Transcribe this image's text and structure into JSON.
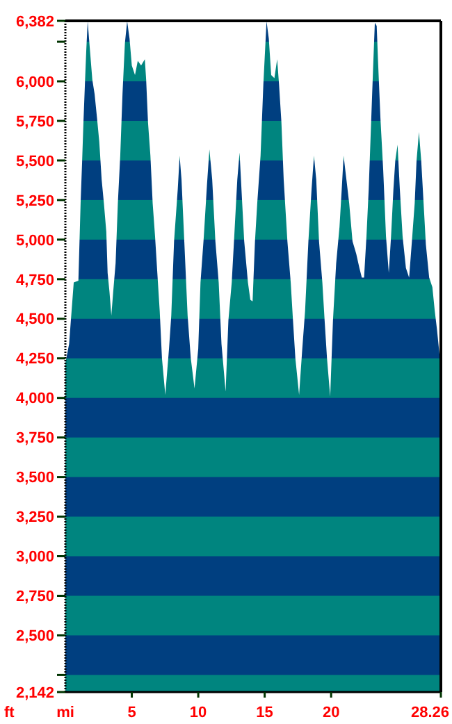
{
  "chart_data": {
    "type": "area",
    "xlabel": "mi",
    "ylabel": "ft",
    "xlim": [
      0,
      28.26
    ],
    "ylim": [
      2142,
      6382
    ],
    "xticks": [
      5,
      10,
      15,
      20,
      28.26
    ],
    "yticks": [
      {
        "value": 2142,
        "label": "2,142"
      },
      {
        "value": 2250,
        "label": null
      },
      {
        "value": 2500,
        "label": "2,500"
      },
      {
        "value": 2750,
        "label": "2,750"
      },
      {
        "value": 3000,
        "label": "3,000"
      },
      {
        "value": 3250,
        "label": "3,250"
      },
      {
        "value": 3500,
        "label": "3,500"
      },
      {
        "value": 3750,
        "label": "3,750"
      },
      {
        "value": 4000,
        "label": "4,000"
      },
      {
        "value": 4250,
        "label": "4,250"
      },
      {
        "value": 4500,
        "label": "4,500"
      },
      {
        "value": 4750,
        "label": "4,750"
      },
      {
        "value": 5000,
        "label": "5,000"
      },
      {
        "value": 5250,
        "label": "5,250"
      },
      {
        "value": 5500,
        "label": "5,500"
      },
      {
        "value": 5750,
        "label": "5,750"
      },
      {
        "value": 6000,
        "label": "6,000"
      },
      {
        "value": 6250,
        "label": null
      },
      {
        "value": 6382,
        "label": "6,382"
      }
    ],
    "grid": false,
    "x": [
      0,
      0.28,
      0.63,
      0.98,
      1.15,
      1.26,
      1.36,
      1.47,
      1.57,
      1.68,
      1.78,
      2.03,
      2.2,
      2.38,
      2.55,
      2.73,
      2.9,
      3.08,
      3.18,
      3.32,
      3.46,
      3.6,
      3.78,
      3.95,
      4.13,
      4.3,
      4.48,
      4.65,
      4.83,
      5,
      5.24,
      5.45,
      5.7,
      5.98,
      6.08,
      6.22,
      6.4,
      6.57,
      6.75,
      6.92,
      7.1,
      7.27,
      7.52,
      7.8,
      7.97,
      8.18,
      8.46,
      8.6,
      8.74,
      8.95,
      9.2,
      9.44,
      9.72,
      10,
      10.17,
      10.42,
      10.66,
      10.84,
      11.05,
      11.29,
      11.54,
      11.75,
      12.06,
      12.27,
      12.52,
      12.69,
      12.94,
      13.11,
      13.29,
      13.46,
      13.74,
      13.92,
      14.09,
      14.27,
      14.44,
      14.69,
      14.9,
      15.14,
      15.31,
      15.49,
      15.73,
      15.94,
      16.08,
      16.26,
      16.43,
      16.71,
      16.96,
      17.13,
      17.31,
      17.59,
      17.83,
      18.04,
      18.29,
      18.53,
      18.71,
      18.88,
      19.09,
      19.34,
      19.51,
      19.69,
      19.93,
      20.14,
      20.38,
      20.63,
      20.8,
      20.94,
      21.15,
      21.36,
      21.61,
      21.89,
      22.13,
      22.31,
      22.48,
      22.66,
      22.83,
      23.01,
      23.18,
      23.29,
      23.43,
      23.53,
      23.71,
      23.92,
      24.13,
      24.34,
      24.51,
      24.69,
      24.83,
      25,
      25.17,
      25.38,
      25.63,
      25.87,
      26.08,
      26.29,
      26.43,
      26.61,
      26.78,
      26.96,
      27.13,
      27.38,
      27.62,
      27.8,
      27.97,
      28.15,
      28.26
    ],
    "series": [
      {
        "color": "#00857f",
        "values": [
          4220,
          4340,
          4730,
          4740,
          5240,
          5490,
          5740,
          5980,
          6190,
          6380,
          6270,
          6010,
          5920,
          5770,
          5620,
          5380,
          5230,
          5050,
          4790,
          4670,
          4520,
          4670,
          4850,
          5230,
          5530,
          5920,
          6240,
          6380,
          6270,
          6100,
          6040,
          6130,
          6100,
          6140,
          6010,
          5740,
          5530,
          5230,
          5020,
          4790,
          4550,
          4250,
          4020,
          4310,
          4520,
          4990,
          5320,
          5530,
          5380,
          4990,
          4520,
          4250,
          4060,
          4310,
          4730,
          5020,
          5350,
          5570,
          5380,
          4990,
          4730,
          4340,
          4040,
          4490,
          4730,
          4990,
          5380,
          5550,
          5260,
          4990,
          4730,
          4620,
          4610,
          4990,
          5230,
          5530,
          5980,
          6380,
          6270,
          6040,
          6020,
          6140,
          5980,
          5740,
          5380,
          4990,
          4730,
          4490,
          4250,
          4020,
          4310,
          4550,
          4990,
          5320,
          5530,
          5380,
          4990,
          4730,
          4490,
          4250,
          4010,
          4490,
          4850,
          5080,
          5320,
          5530,
          5380,
          5230,
          4990,
          4910,
          4820,
          4760,
          4760,
          5020,
          5320,
          5740,
          6130,
          6370,
          6350,
          6130,
          5770,
          5440,
          5020,
          4790,
          5020,
          5320,
          5500,
          5600,
          5320,
          5020,
          4820,
          4760,
          4990,
          5230,
          5500,
          5680,
          5500,
          5230,
          4970,
          4760,
          4700,
          4550,
          4430,
          4280,
          4250
        ]
      }
    ]
  }
}
